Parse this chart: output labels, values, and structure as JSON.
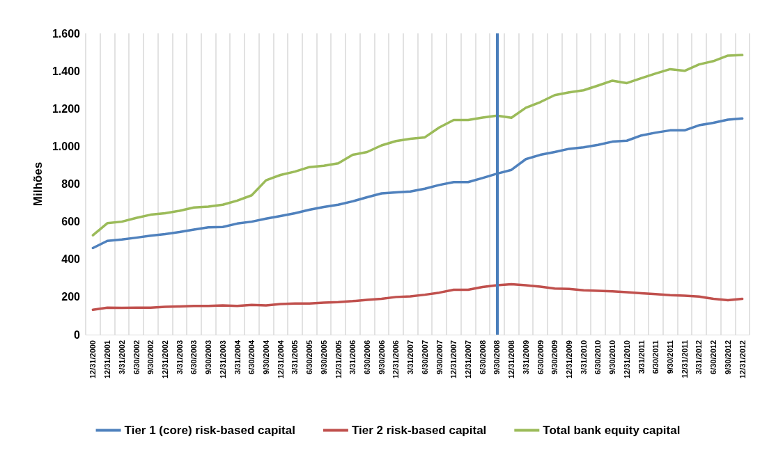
{
  "chart_data": {
    "type": "line",
    "ylabel": "Milhões",
    "categories": [
      "12/31/2000",
      "12/31/2001",
      "3/31/2002",
      "6/30/2002",
      "9/30/2002",
      "12/31/2002",
      "3/31/2003",
      "6/30/2003",
      "9/30/2003",
      "12/31/2003",
      "3/31/2004",
      "6/30/2004",
      "9/30/2004",
      "12/31/2004",
      "3/31/2005",
      "6/30/2005",
      "9/30/2005",
      "12/31/2005",
      "3/31/2006",
      "6/30/2006",
      "9/30/2006",
      "12/31/2006",
      "3/31/2007",
      "6/30/2007",
      "9/30/2007",
      "12/31/2007",
      "12/31/2007",
      "6/30/2008",
      "9/30/2008",
      "12/31/2008",
      "3/31/2009",
      "6/30/2009",
      "9/30/2009",
      "12/31/2009",
      "3/31/2010",
      "6/30/2010",
      "9/30/2010",
      "12/31/2010",
      "3/31/2011",
      "6/30/2011",
      "9/30/2011",
      "12/31/2011",
      "3/31/2012",
      "6/30/2012",
      "9/30/2012",
      "12/31/2012"
    ],
    "series": [
      {
        "name": "Tier 1 (core) risk-based capital",
        "color": "#4f81bd",
        "values": [
          460,
          498,
          505,
          515,
          526,
          534,
          545,
          558,
          570,
          572,
          590,
          600,
          616,
          630,
          645,
          663,
          678,
          690,
          708,
          730,
          750,
          756,
          760,
          775,
          795,
          810,
          810,
          832,
          855,
          875,
          932,
          955,
          970,
          987,
          995,
          1008,
          1025,
          1030,
          1058,
          1073,
          1085,
          1085,
          1112,
          1125,
          1142,
          1148
        ]
      },
      {
        "name": "Tier 2 risk-based capital",
        "color": "#c0504d",
        "values": [
          132,
          143,
          142,
          143,
          143,
          148,
          150,
          152,
          152,
          155,
          152,
          158,
          155,
          163,
          165,
          165,
          170,
          173,
          178,
          185,
          190,
          200,
          203,
          212,
          223,
          238,
          238,
          253,
          262,
          268,
          262,
          255,
          245,
          243,
          236,
          233,
          230,
          225,
          220,
          215,
          210,
          207,
          202,
          190,
          183,
          190
        ]
      },
      {
        "name": "Total bank equity capital",
        "color": "#9bbb59",
        "values": [
          528,
          592,
          600,
          620,
          637,
          645,
          658,
          675,
          680,
          690,
          712,
          740,
          820,
          848,
          866,
          890,
          897,
          910,
          955,
          970,
          1005,
          1028,
          1040,
          1048,
          1100,
          1140,
          1140,
          1153,
          1163,
          1152,
          1205,
          1235,
          1272,
          1287,
          1298,
          1323,
          1349,
          1336,
          1362,
          1387,
          1410,
          1401,
          1435,
          1453,
          1482,
          1485
        ]
      }
    ],
    "ylim": [
      0,
      1600
    ],
    "yticks": [
      0,
      200,
      400,
      600,
      800,
      {
        "value": 1000,
        "label": "1.000"
      },
      {
        "value": 1200,
        "label": "1.200"
      },
      {
        "value": 1400,
        "label": "1.400"
      },
      {
        "value": 1600,
        "label": "1.600"
      }
    ],
    "ref_lines": [
      {
        "axis": "x",
        "value": "9/30/2008",
        "color": "#4a7ebb"
      }
    ],
    "grid": "x",
    "legend": "bottom",
    "marker": "none",
    "line_style": "solid"
  }
}
